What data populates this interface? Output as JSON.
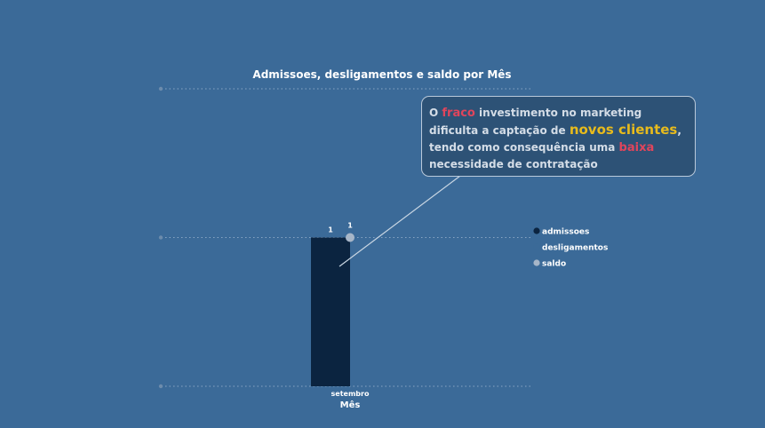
{
  "chart_data": {
    "type": "bar",
    "title": "Admissoes, desligamentos e saldo por Mês",
    "xlabel": "Mês",
    "categories": [
      "setembro"
    ],
    "ylim": [
      0,
      2
    ],
    "ytick_values": [
      0,
      1,
      2
    ],
    "series": [
      {
        "name": "admissoes",
        "type": "bar",
        "values": [
          1
        ],
        "data_labels": [
          "1"
        ]
      },
      {
        "name": "desligamentos",
        "type": "bar",
        "values": [
          0
        ],
        "data_labels": []
      },
      {
        "name": "saldo",
        "type": "point",
        "values": [
          1
        ],
        "data_labels": [
          "1"
        ]
      }
    ],
    "legend_position": "right",
    "grid": true
  },
  "colors": {
    "background": "#3b6a98",
    "admissoes": "#0b2440",
    "desligamentos": "#3b6a98",
    "saldo": "#a7b6c8",
    "grid": "#8aa6c4",
    "red": "#e0455c",
    "yellow": "#e8bb1c"
  },
  "annotation": {
    "p1": "O ",
    "w1": "fraco",
    "p2": " investimento no marketing dificulta a captação de ",
    "w2": "novos clientes",
    "p3": ", tendo como consequência uma ",
    "w3": "baixa",
    "p4": " necessidade de contratação"
  }
}
